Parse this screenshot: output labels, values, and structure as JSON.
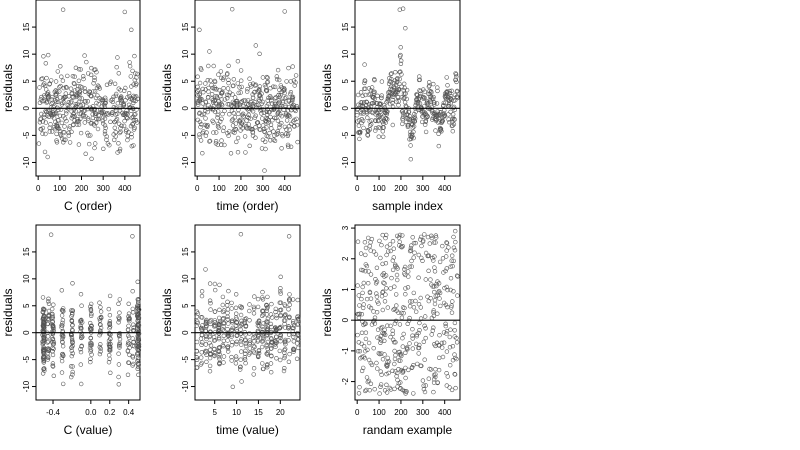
{
  "chart_data": [
    {
      "type": "scatter",
      "xlabel": "C (order)",
      "ylabel": "residuals",
      "xlim": [
        -10,
        470
      ],
      "ylim": [
        -12.5,
        20
      ],
      "xticks": [
        0,
        100,
        200,
        300,
        400
      ],
      "yticks": [
        -10,
        -5,
        0,
        5,
        10,
        15
      ],
      "hline": 0,
      "n_points": 460,
      "spread": "residuals mostly between -10 and 10, a few outliers near 18",
      "outliers": [
        {
          "x": 115,
          "y": 18.2
        },
        {
          "x": 400,
          "y": 17.8
        },
        {
          "x": 430,
          "y": 14.5
        }
      ]
    },
    {
      "type": "scatter",
      "xlabel": "time (order)",
      "ylabel": "residuals",
      "xlim": [
        -10,
        470
      ],
      "ylim": [
        -12.5,
        20
      ],
      "xticks": [
        0,
        100,
        200,
        300,
        400
      ],
      "yticks": [
        -10,
        -5,
        0,
        5,
        10,
        15
      ],
      "hline": 0,
      "n_points": 460,
      "spread": "residuals mostly between -10 and 10, a few outliers near 18",
      "outliers": [
        {
          "x": 160,
          "y": 18.3
        },
        {
          "x": 400,
          "y": 17.9
        },
        {
          "x": 10,
          "y": 14.5
        }
      ]
    },
    {
      "type": "scatter",
      "xlabel": "sample index",
      "ylabel": "residuals",
      "xlim": [
        -10,
        470
      ],
      "ylim": [
        -12.5,
        20
      ],
      "xticks": [
        0,
        100,
        200,
        300,
        400
      ],
      "yticks": [
        -10,
        -5,
        0,
        5,
        10,
        15
      ],
      "hline": 0,
      "n_points": 460,
      "spread": "autocorrelated residuals, peak around index 200 reaching about 18",
      "outliers": [
        {
          "x": 195,
          "y": 18.2
        },
        {
          "x": 210,
          "y": 18.4
        },
        {
          "x": 220,
          "y": 14.8
        }
      ]
    },
    {
      "type": "scatter",
      "xlabel": "C (value)",
      "ylabel": "residuals",
      "xlim": [
        -0.58,
        0.52
      ],
      "ylim": [
        -12.5,
        20
      ],
      "xticks": [
        -0.4,
        0.0,
        0.2,
        0.4
      ],
      "xtick_labels": [
        "-0.4",
        "0.0",
        "0.2",
        "0.4"
      ],
      "yticks": [
        -10,
        -5,
        0,
        5,
        10,
        15
      ],
      "hline": 0,
      "n_points": 460,
      "spread": "dense vertical clusters at C = -0.5 and C = 0.5",
      "outliers": [
        {
          "x": -0.42,
          "y": 18.2
        },
        {
          "x": 0.44,
          "y": 17.9
        }
      ]
    },
    {
      "type": "scatter",
      "xlabel": "time (value)",
      "ylabel": "residuals",
      "xlim": [
        0.5,
        24.5
      ],
      "ylim": [
        -12.5,
        20
      ],
      "xticks": [
        5,
        10,
        15,
        20
      ],
      "yticks": [
        -10,
        -5,
        0,
        5,
        10,
        15
      ],
      "hline": 0,
      "n_points": 460,
      "spread": "points in vertical bands at integer time values from 1 to 24",
      "outliers": [
        {
          "x": 11,
          "y": 18.3
        },
        {
          "x": 22,
          "y": 17.9
        }
      ]
    },
    {
      "type": "scatter",
      "xlabel": "randam example",
      "ylabel": "residuals",
      "xlim": [
        -10,
        470
      ],
      "ylim": [
        -2.6,
        3.1
      ],
      "xticks": [
        0,
        100,
        200,
        300,
        400
      ],
      "yticks": [
        -2,
        -1,
        0,
        1,
        2,
        3
      ],
      "hline": 0,
      "n_points": 460,
      "spread": "uniform random residuals between about -2.4 and 2.9",
      "outliers": [
        {
          "x": 448,
          "y": 2.9
        }
      ]
    }
  ]
}
